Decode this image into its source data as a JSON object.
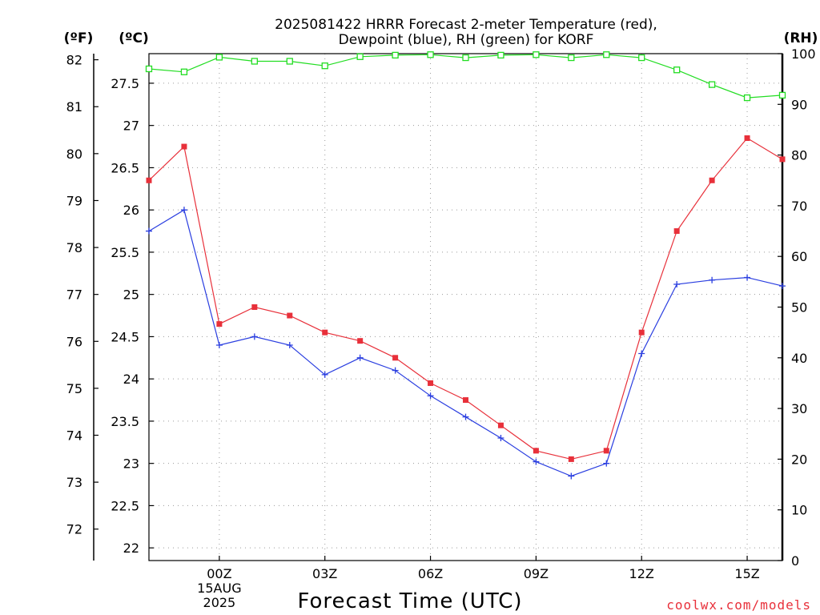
{
  "chart_data": {
    "type": "line",
    "title_lines": [
      "2025081422 HRRR Forecast 2-meter Temperature (red),",
      "Dewpoint (blue), RH (green) for KORF"
    ],
    "unit_labels": {
      "fahrenheit": "(ºF)",
      "celsius": "(ºC)",
      "rh": "(RH)"
    },
    "xlabel": "Forecast Time (UTC)",
    "credit": "coolwx.com/models",
    "x_ticks": [
      {
        "h": 2,
        "lines": [
          "00Z",
          "15AUG",
          "2025"
        ]
      },
      {
        "h": 5,
        "lines": [
          "03Z"
        ]
      },
      {
        "h": 8,
        "lines": [
          "06Z"
        ]
      },
      {
        "h": 11,
        "lines": [
          "09Z"
        ]
      },
      {
        "h": 14,
        "lines": [
          "12Z"
        ]
      },
      {
        "h": 17,
        "lines": [
          "15Z"
        ]
      }
    ],
    "x_range": [
      0,
      18
    ],
    "celsius_range": [
      21.85,
      27.85
    ],
    "celsius_ticks": [
      22,
      22.5,
      23,
      23.5,
      24,
      24.5,
      25,
      25.5,
      26,
      26.5,
      27,
      27.5
    ],
    "fahrenheit_ticks": [
      72,
      73,
      74,
      75,
      76,
      77,
      78,
      79,
      80,
      81,
      82
    ],
    "rh_range": [
      0,
      100
    ],
    "rh_ticks": [
      0,
      10,
      20,
      30,
      40,
      50,
      60,
      70,
      80,
      90,
      100
    ],
    "x_hours": [
      0,
      1,
      2,
      3,
      4,
      5,
      6,
      7,
      8,
      9,
      10,
      11,
      12,
      13,
      14,
      15,
      16,
      17,
      18
    ],
    "series": [
      {
        "name": "Temperature",
        "axis": "celsius",
        "color": "#e8303a",
        "marker": "filled-square",
        "values": [
          26.35,
          26.75,
          24.65,
          24.85,
          24.75,
          24.55,
          24.45,
          24.25,
          23.95,
          23.75,
          23.45,
          23.15,
          23.05,
          23.15,
          24.55,
          25.75,
          26.35,
          26.85,
          26.6
        ]
      },
      {
        "name": "Dewpoint",
        "axis": "celsius",
        "color": "#2a3ee0",
        "marker": "plus",
        "values": [
          25.75,
          26.0,
          24.4,
          24.5,
          24.4,
          24.05,
          24.25,
          24.1,
          23.8,
          23.55,
          23.3,
          23.02,
          22.85,
          23.0,
          24.3,
          25.12,
          25.17,
          25.2,
          25.1
        ]
      },
      {
        "name": "RH",
        "axis": "rh",
        "color": "#22dd22",
        "marker": "open-square",
        "values": [
          97,
          96.4,
          99.3,
          98.5,
          98.5,
          97.6,
          99.4,
          99.7,
          99.8,
          99.2,
          99.7,
          99.8,
          99.2,
          99.8,
          99.2,
          96.8,
          93.9,
          91.3,
          91.8
        ]
      }
    ]
  }
}
